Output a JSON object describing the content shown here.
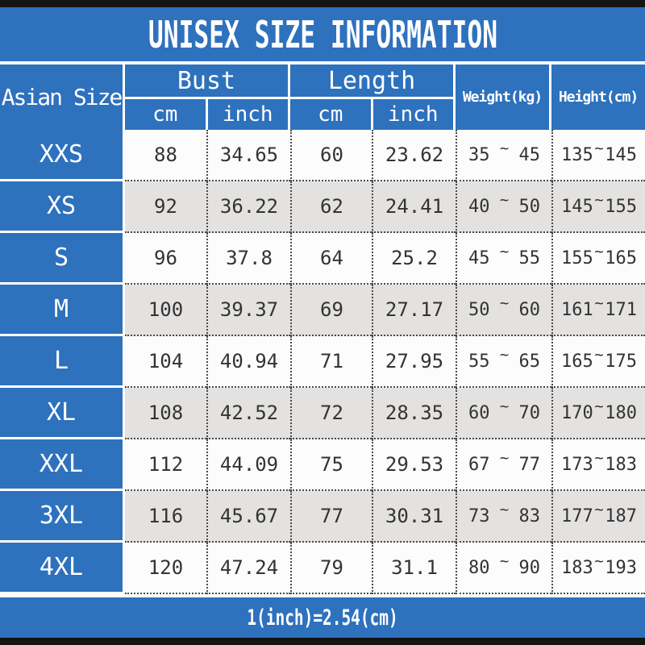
{
  "title": "UNISEX SIZE INFORMATION",
  "footer_note": "1(inch)=2.54(cm)",
  "symbols": {
    "range_tilde": "~"
  },
  "colors": {
    "primary_blue": "#2e71bd",
    "row_alt_gray": "#e3e2e0",
    "row_white": "#fcfcfc",
    "bar_black": "#141414"
  },
  "table": {
    "headers": {
      "asian_size": "Asian Size",
      "bust": "Bust",
      "length": "Length",
      "weight": "Weight(kg)",
      "height": "Height(cm)",
      "bust_cm": "cm",
      "bust_inch": "inch",
      "length_cm": "cm",
      "length_inch": "inch"
    },
    "rows": [
      {
        "size": "XXS",
        "bust_cm": "88",
        "bust_inch": "34.65",
        "length_cm": "60",
        "length_inch": "23.62",
        "weight_min": "35",
        "weight_max": "45",
        "height_min": "135",
        "height_max": "145"
      },
      {
        "size": "XS",
        "bust_cm": "92",
        "bust_inch": "36.22",
        "length_cm": "62",
        "length_inch": "24.41",
        "weight_min": "40",
        "weight_max": "50",
        "height_min": "145",
        "height_max": "155"
      },
      {
        "size": "S",
        "bust_cm": "96",
        "bust_inch": "37.8",
        "length_cm": "64",
        "length_inch": "25.2",
        "weight_min": "45",
        "weight_max": "55",
        "height_min": "155",
        "height_max": "165"
      },
      {
        "size": "M",
        "bust_cm": "100",
        "bust_inch": "39.37",
        "length_cm": "69",
        "length_inch": "27.17",
        "weight_min": "50",
        "weight_max": "60",
        "height_min": "161",
        "height_max": "171"
      },
      {
        "size": "L",
        "bust_cm": "104",
        "bust_inch": "40.94",
        "length_cm": "71",
        "length_inch": "27.95",
        "weight_min": "55",
        "weight_max": "65",
        "height_min": "165",
        "height_max": "175"
      },
      {
        "size": "XL",
        "bust_cm": "108",
        "bust_inch": "42.52",
        "length_cm": "72",
        "length_inch": "28.35",
        "weight_min": "60",
        "weight_max": "70",
        "height_min": "170",
        "height_max": "180"
      },
      {
        "size": "XXL",
        "bust_cm": "112",
        "bust_inch": "44.09",
        "length_cm": "75",
        "length_inch": "29.53",
        "weight_min": "67",
        "weight_max": "77",
        "height_min": "173",
        "height_max": "183"
      },
      {
        "size": "3XL",
        "bust_cm": "116",
        "bust_inch": "45.67",
        "length_cm": "77",
        "length_inch": "30.31",
        "weight_min": "73",
        "weight_max": "83",
        "height_min": "177",
        "height_max": "187"
      },
      {
        "size": "4XL",
        "bust_cm": "120",
        "bust_inch": "47.24",
        "length_cm": "79",
        "length_inch": "31.1",
        "weight_min": "80",
        "weight_max": "90",
        "height_min": "183",
        "height_max": "193"
      }
    ]
  }
}
